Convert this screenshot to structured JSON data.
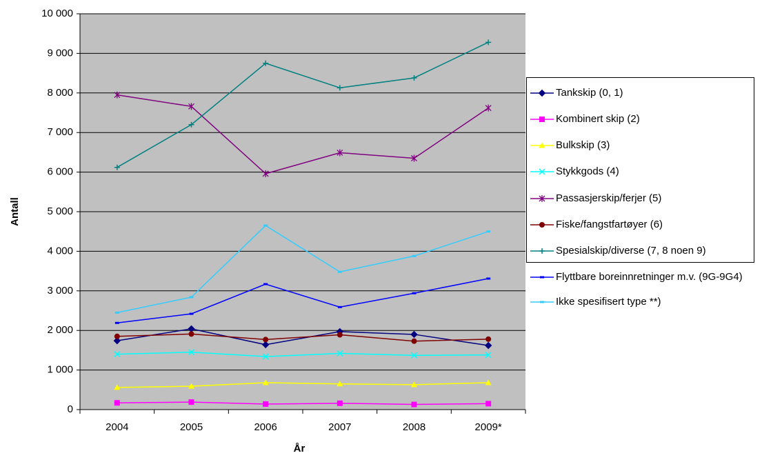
{
  "chart_data": {
    "type": "line",
    "x_label": "År",
    "y_label": "Antall",
    "categories": [
      "2004",
      "2005",
      "2006",
      "2007",
      "2008",
      "2009*"
    ],
    "ylim": [
      0,
      10000
    ],
    "yticks": [
      0,
      {
        "value": 1000,
        "label": "1 000"
      },
      {
        "value": 2000,
        "label": "2 000"
      },
      {
        "value": 3000,
        "label": "3 000"
      },
      {
        "value": 4000,
        "label": "4 000"
      },
      {
        "value": 5000,
        "label": "5 000"
      },
      {
        "value": 6000,
        "label": "6 000"
      },
      {
        "value": 7000,
        "label": "7 000"
      },
      {
        "value": 8000,
        "label": "8 000"
      },
      {
        "value": 9000,
        "label": "9 000"
      },
      {
        "value": 10000,
        "label": "10 000"
      }
    ],
    "grid": true,
    "background": "#c0c0c0",
    "legend": "right",
    "series": [
      {
        "name": "Tankskip (0, 1)",
        "color": "#000080",
        "marker": "diamond",
        "values": [
          1740,
          2040,
          1640,
          1970,
          1900,
          1620
        ]
      },
      {
        "name": "Kombinert skip (2)",
        "color": "#ff00ff",
        "marker": "square",
        "values": [
          170,
          190,
          140,
          160,
          130,
          150
        ]
      },
      {
        "name": "Bulkskip (3)",
        "color": "#ffff00",
        "marker": "triangle",
        "values": [
          560,
          590,
          680,
          650,
          630,
          680
        ]
      },
      {
        "name": "Stykkgods (4)",
        "color": "#00ffff",
        "marker": "x",
        "values": [
          1400,
          1450,
          1340,
          1420,
          1370,
          1380
        ]
      },
      {
        "name": "Passasjerskip/ferjer (5)",
        "color": "#800080",
        "marker": "star",
        "values": [
          7950,
          7660,
          5960,
          6490,
          6350,
          7620
        ]
      },
      {
        "name": "Fiske/fangstfartøyer (6)",
        "color": "#800000",
        "marker": "circle",
        "values": [
          1850,
          1910,
          1770,
          1890,
          1730,
          1780
        ]
      },
      {
        "name": "Spesialskip/diverse (7, 8 noen 9)",
        "color": "#008080",
        "marker": "plus",
        "values": [
          6120,
          7200,
          8750,
          8130,
          8380,
          9280
        ]
      },
      {
        "name": "Flyttbare boreinnretninger m.v. (9G-9G4)",
        "color": "#0000ff",
        "marker": "dash",
        "values": [
          2190,
          2420,
          3170,
          2590,
          2940,
          3310
        ]
      },
      {
        "name": "Ikke spesifisert type **)",
        "color": "#33ccff",
        "marker": "dash",
        "values": [
          2450,
          2840,
          4650,
          3480,
          3880,
          4500
        ]
      }
    ]
  }
}
